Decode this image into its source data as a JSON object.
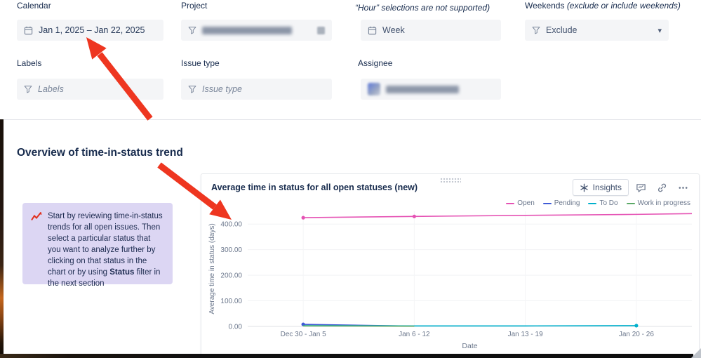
{
  "filters": {
    "calendar": {
      "label": "Calendar",
      "value": "Jan 1, 2025 – Jan 22, 2025"
    },
    "project": {
      "label": "Project"
    },
    "time_period": {
      "label_note": "“Hour” selections are not supported)",
      "value": "Week"
    },
    "weekends": {
      "label": "Weekends ",
      "label_note": "(exclude or include weekends)",
      "value": "Exclude"
    },
    "labels_filter": {
      "label": "Labels",
      "placeholder": "Labels"
    },
    "issue_type": {
      "label": "Issue type",
      "placeholder": "Issue type"
    },
    "assignee": {
      "label": "Assignee"
    }
  },
  "section_title": "Overview of time-in-status trend",
  "callout": {
    "text_before": "Start by reviewing time-in-status trends for all open issues. Then select a particular status that you want to analyze further by clicking on that status in the chart or by using ",
    "bold": "Status",
    "text_after": " filter in the next section"
  },
  "card": {
    "title": "Average time in status for all open statuses (new)",
    "insights_label": "Insights"
  },
  "chart_data": {
    "type": "line",
    "title": "Average time in status for all open statuses (new)",
    "xlabel": "Date",
    "ylabel": "Average time in status (days)",
    "ylim": [
      0,
      450
    ],
    "yticks": [
      0,
      100,
      200,
      300,
      400
    ],
    "grid": true,
    "legend_position": "top-right",
    "categories": [
      "Dec 30 - Jan 5",
      "Jan 6 - 12",
      "Jan 13 - 19",
      "Jan 20 - 26"
    ],
    "series": [
      {
        "name": "Open",
        "color": "#e552b4",
        "values": [
          425,
          430,
          434,
          438
        ],
        "edge_value": 441,
        "marker_indices": [
          0,
          1
        ]
      },
      {
        "name": "Pending",
        "color": "#3f5bd6",
        "values": [
          8,
          1,
          null,
          null
        ],
        "marker_indices": [
          0
        ]
      },
      {
        "name": "To Do",
        "color": "#00b0cc",
        "values": [
          3,
          2,
          2,
          3
        ],
        "marker_indices": [
          3
        ]
      },
      {
        "name": "Work in progress",
        "color": "#5ba966",
        "values": [
          2,
          0.8,
          null,
          null
        ],
        "marker_indices": []
      }
    ]
  }
}
